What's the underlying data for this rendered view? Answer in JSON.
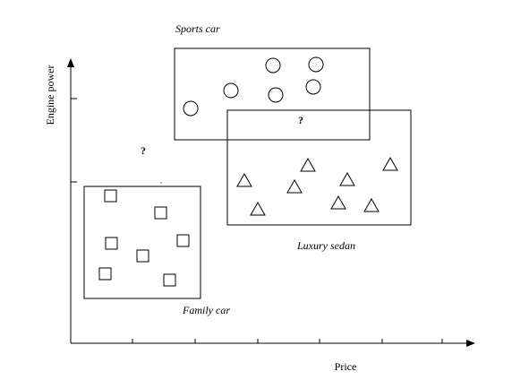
{
  "axes": {
    "x_label": "Price",
    "y_label": "Engine power"
  },
  "regions": {
    "sports": {
      "label": "Sports car"
    },
    "luxury": {
      "label": "Luxury sedan"
    },
    "family": {
      "label": "Family car"
    }
  },
  "unknowns": {
    "overlap_mark": "?",
    "gap_mark": "?"
  },
  "colors": {
    "stroke": "#000000",
    "background": "#ffffff"
  }
}
